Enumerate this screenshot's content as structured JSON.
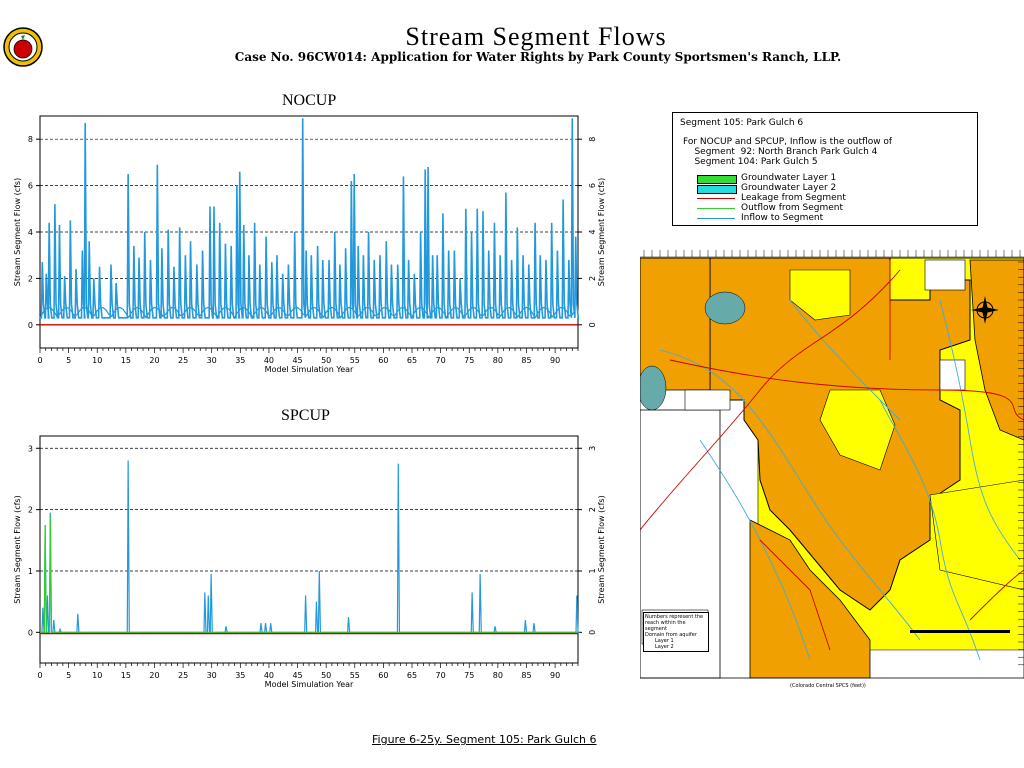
{
  "page": {
    "title": "Stream  Segment  Flows",
    "subtitle": "Case No. 96CW014: Application for Water Rights by Park County Sportsmen's Ranch, LLP.",
    "caption": "Figure 6-25y.  Segment 105: Park Gulch 6"
  },
  "legend": {
    "segment": "Segment 105: Park Gulch 6",
    "note_lines": [
      "For NOCUP and SPCUP, Inflow is the outflow of",
      "    Segment  92: North Branch Park Gulch 4",
      "    Segment 104: Park Gulch 5"
    ],
    "items": [
      {
        "label": "Groundwater Layer 1",
        "kind": "swatch",
        "color": "#33dd33"
      },
      {
        "label": "Groundwater Layer 2",
        "kind": "swatch",
        "color": "#22dddd"
      },
      {
        "label": "Leakage from Segment",
        "kind": "line",
        "color": "#cc0000"
      },
      {
        "label": "Outflow from Segment",
        "kind": "line",
        "color": "#33cc33"
      },
      {
        "label": "Inflow to Segment",
        "kind": "line",
        "color": "#2299dd"
      }
    ]
  },
  "map": {
    "legend_line1": "Numbers represent the",
    "legend_line2": "reach within the",
    "legend_line3": "segment",
    "legend_line4": "Domain from aquifer",
    "layer1": "Layer 1",
    "layer2": "Layer 2",
    "x_axis_label": "(Colorado Central SPCS (feet))",
    "colors": {
      "layer1": "#ffff00",
      "layer2": "#f0a000",
      "stream": "#44aadd",
      "road": "#cc0000"
    }
  },
  "chart_data": [
    {
      "type": "line",
      "title": "NOCUP",
      "xlabel": "Model Simulation Year",
      "ylabel": "Stream  Segment  Flow  (cfs)",
      "xlim": [
        0,
        94
      ],
      "ylim": [
        -1,
        9
      ],
      "xticks": [
        0,
        5,
        10,
        15,
        20,
        25,
        30,
        35,
        40,
        45,
        50,
        55,
        60,
        65,
        70,
        75,
        80,
        85,
        90
      ],
      "yticks": [
        0,
        2,
        4,
        6,
        8
      ],
      "grid": "horizontal dashed",
      "series": [
        {
          "name": "Inflow to Segment",
          "color": "#2299dd",
          "baseline": 0.3,
          "peaks": [
            [
              0.4,
              2.7
            ],
            [
              1.1,
              2.2
            ],
            [
              1.6,
              4.4
            ],
            [
              2.6,
              5.2
            ],
            [
              3.4,
              4.3
            ],
            [
              4.3,
              2.1
            ],
            [
              5.3,
              4.5
            ],
            [
              6.3,
              2.4
            ],
            [
              7.4,
              3.2
            ],
            [
              7.9,
              8.7
            ],
            [
              8.6,
              3.6
            ],
            [
              9.4,
              2.0
            ],
            [
              10.4,
              2.5
            ],
            [
              12.4,
              2.6
            ],
            [
              13.3,
              1.8
            ],
            [
              15.4,
              6.5
            ],
            [
              16.4,
              3.4
            ],
            [
              17.3,
              2.9
            ],
            [
              18.3,
              4.0
            ],
            [
              19.3,
              2.8
            ],
            [
              20.5,
              6.9
            ],
            [
              21.3,
              3.3
            ],
            [
              22.4,
              4.1
            ],
            [
              23.4,
              2.5
            ],
            [
              24.4,
              4.2
            ],
            [
              25.4,
              3.0
            ],
            [
              26.3,
              3.6
            ],
            [
              27.4,
              2.6
            ],
            [
              28.4,
              3.2
            ],
            [
              29.7,
              5.1
            ],
            [
              30.4,
              5.1
            ],
            [
              31.4,
              4.4
            ],
            [
              32.4,
              3.5
            ],
            [
              33.4,
              3.4
            ],
            [
              34.4,
              6.0
            ],
            [
              34.9,
              6.6
            ],
            [
              35.6,
              4.3
            ],
            [
              36.5,
              3.0
            ],
            [
              37.5,
              4.4
            ],
            [
              38.4,
              2.6
            ],
            [
              39.5,
              3.8
            ],
            [
              40.5,
              2.7
            ],
            [
              41.4,
              3.0
            ],
            [
              42.4,
              2.2
            ],
            [
              43.4,
              2.6
            ],
            [
              44.5,
              4.0
            ],
            [
              45.9,
              8.9
            ],
            [
              46.5,
              3.2
            ],
            [
              47.4,
              3.0
            ],
            [
              48.5,
              3.4
            ],
            [
              49.4,
              2.8
            ],
            [
              50.5,
              2.8
            ],
            [
              51.5,
              4.0
            ],
            [
              52.4,
              2.6
            ],
            [
              53.4,
              3.3
            ],
            [
              54.4,
              6.2
            ],
            [
              54.9,
              6.5
            ],
            [
              55.6,
              3.4
            ],
            [
              56.5,
              3.0
            ],
            [
              57.4,
              4.0
            ],
            [
              58.4,
              2.8
            ],
            [
              59.4,
              3.0
            ],
            [
              60.5,
              3.6
            ],
            [
              61.4,
              2.6
            ],
            [
              62.5,
              2.6
            ],
            [
              63.5,
              6.4
            ],
            [
              64.4,
              2.8
            ],
            [
              65.4,
              2.2
            ],
            [
              66.5,
              4.0
            ],
            [
              67.3,
              6.7
            ],
            [
              67.8,
              6.8
            ],
            [
              68.6,
              3.0
            ],
            [
              69.4,
              3.0
            ],
            [
              70.4,
              4.8
            ],
            [
              71.4,
              3.2
            ],
            [
              72.4,
              3.2
            ],
            [
              73.4,
              2.0
            ],
            [
              74.4,
              5.0
            ],
            [
              75.4,
              4.0
            ],
            [
              76.4,
              5.0
            ],
            [
              77.4,
              4.9
            ],
            [
              78.4,
              3.2
            ],
            [
              79.4,
              4.4
            ],
            [
              80.4,
              3.0
            ],
            [
              81.4,
              5.7
            ],
            [
              82.4,
              2.8
            ],
            [
              83.4,
              4.2
            ],
            [
              84.4,
              3.0
            ],
            [
              85.4,
              2.6
            ],
            [
              86.5,
              4.4
            ],
            [
              87.4,
              3.0
            ],
            [
              88.4,
              2.8
            ],
            [
              89.4,
              4.4
            ],
            [
              90.4,
              3.2
            ],
            [
              91.4,
              5.4
            ],
            [
              92.4,
              2.8
            ],
            [
              93.0,
              8.9
            ],
            [
              93.6,
              3.8
            ]
          ]
        },
        {
          "name": "Leakage from Segment",
          "color": "#cc0000",
          "constant": 0.0
        }
      ]
    },
    {
      "type": "line",
      "title": "SPCUP",
      "xlabel": "Model Simulation Year",
      "ylabel": "Stream  Segment  Flow  (cfs)",
      "xlim": [
        0,
        94
      ],
      "ylim": [
        -0.5,
        3.2
      ],
      "xticks": [
        0,
        5,
        10,
        15,
        20,
        25,
        30,
        35,
        40,
        45,
        50,
        55,
        60,
        65,
        70,
        75,
        80,
        85,
        90
      ],
      "yticks": [
        0,
        1,
        2,
        3
      ],
      "grid": "horizontal dashed",
      "series": [
        {
          "name": "Inflow to Segment",
          "color": "#2299dd",
          "baseline": 0.0,
          "peaks": [
            [
              0.5,
              0.4
            ],
            [
              0.9,
              1.75
            ],
            [
              1.3,
              0.6
            ],
            [
              1.8,
              1.95
            ],
            [
              2.4,
              0.2
            ],
            [
              3.5,
              0.05
            ],
            [
              6.6,
              0.3
            ],
            [
              15.4,
              2.8
            ],
            [
              28.8,
              0.65
            ],
            [
              29.4,
              0.6
            ],
            [
              29.9,
              0.95
            ],
            [
              32.5,
              0.1
            ],
            [
              38.6,
              0.15
            ],
            [
              39.4,
              0.15
            ],
            [
              40.3,
              0.15
            ],
            [
              46.4,
              0.6
            ],
            [
              48.3,
              0.5
            ],
            [
              48.8,
              1.0
            ],
            [
              53.9,
              0.25
            ],
            [
              62.6,
              2.75
            ],
            [
              75.5,
              0.65
            ],
            [
              76.9,
              0.95
            ],
            [
              79.5,
              0.1
            ],
            [
              84.8,
              0.2
            ],
            [
              86.3,
              0.15
            ],
            [
              93.8,
              0.6
            ]
          ]
        },
        {
          "name": "Outflow from Segment",
          "color": "#33cc33",
          "peaks": [
            [
              0.9,
              1.75
            ],
            [
              1.8,
              1.9
            ]
          ]
        },
        {
          "name": "Leakage from Segment",
          "color": "#cc0000",
          "constant": -0.02
        }
      ]
    }
  ]
}
